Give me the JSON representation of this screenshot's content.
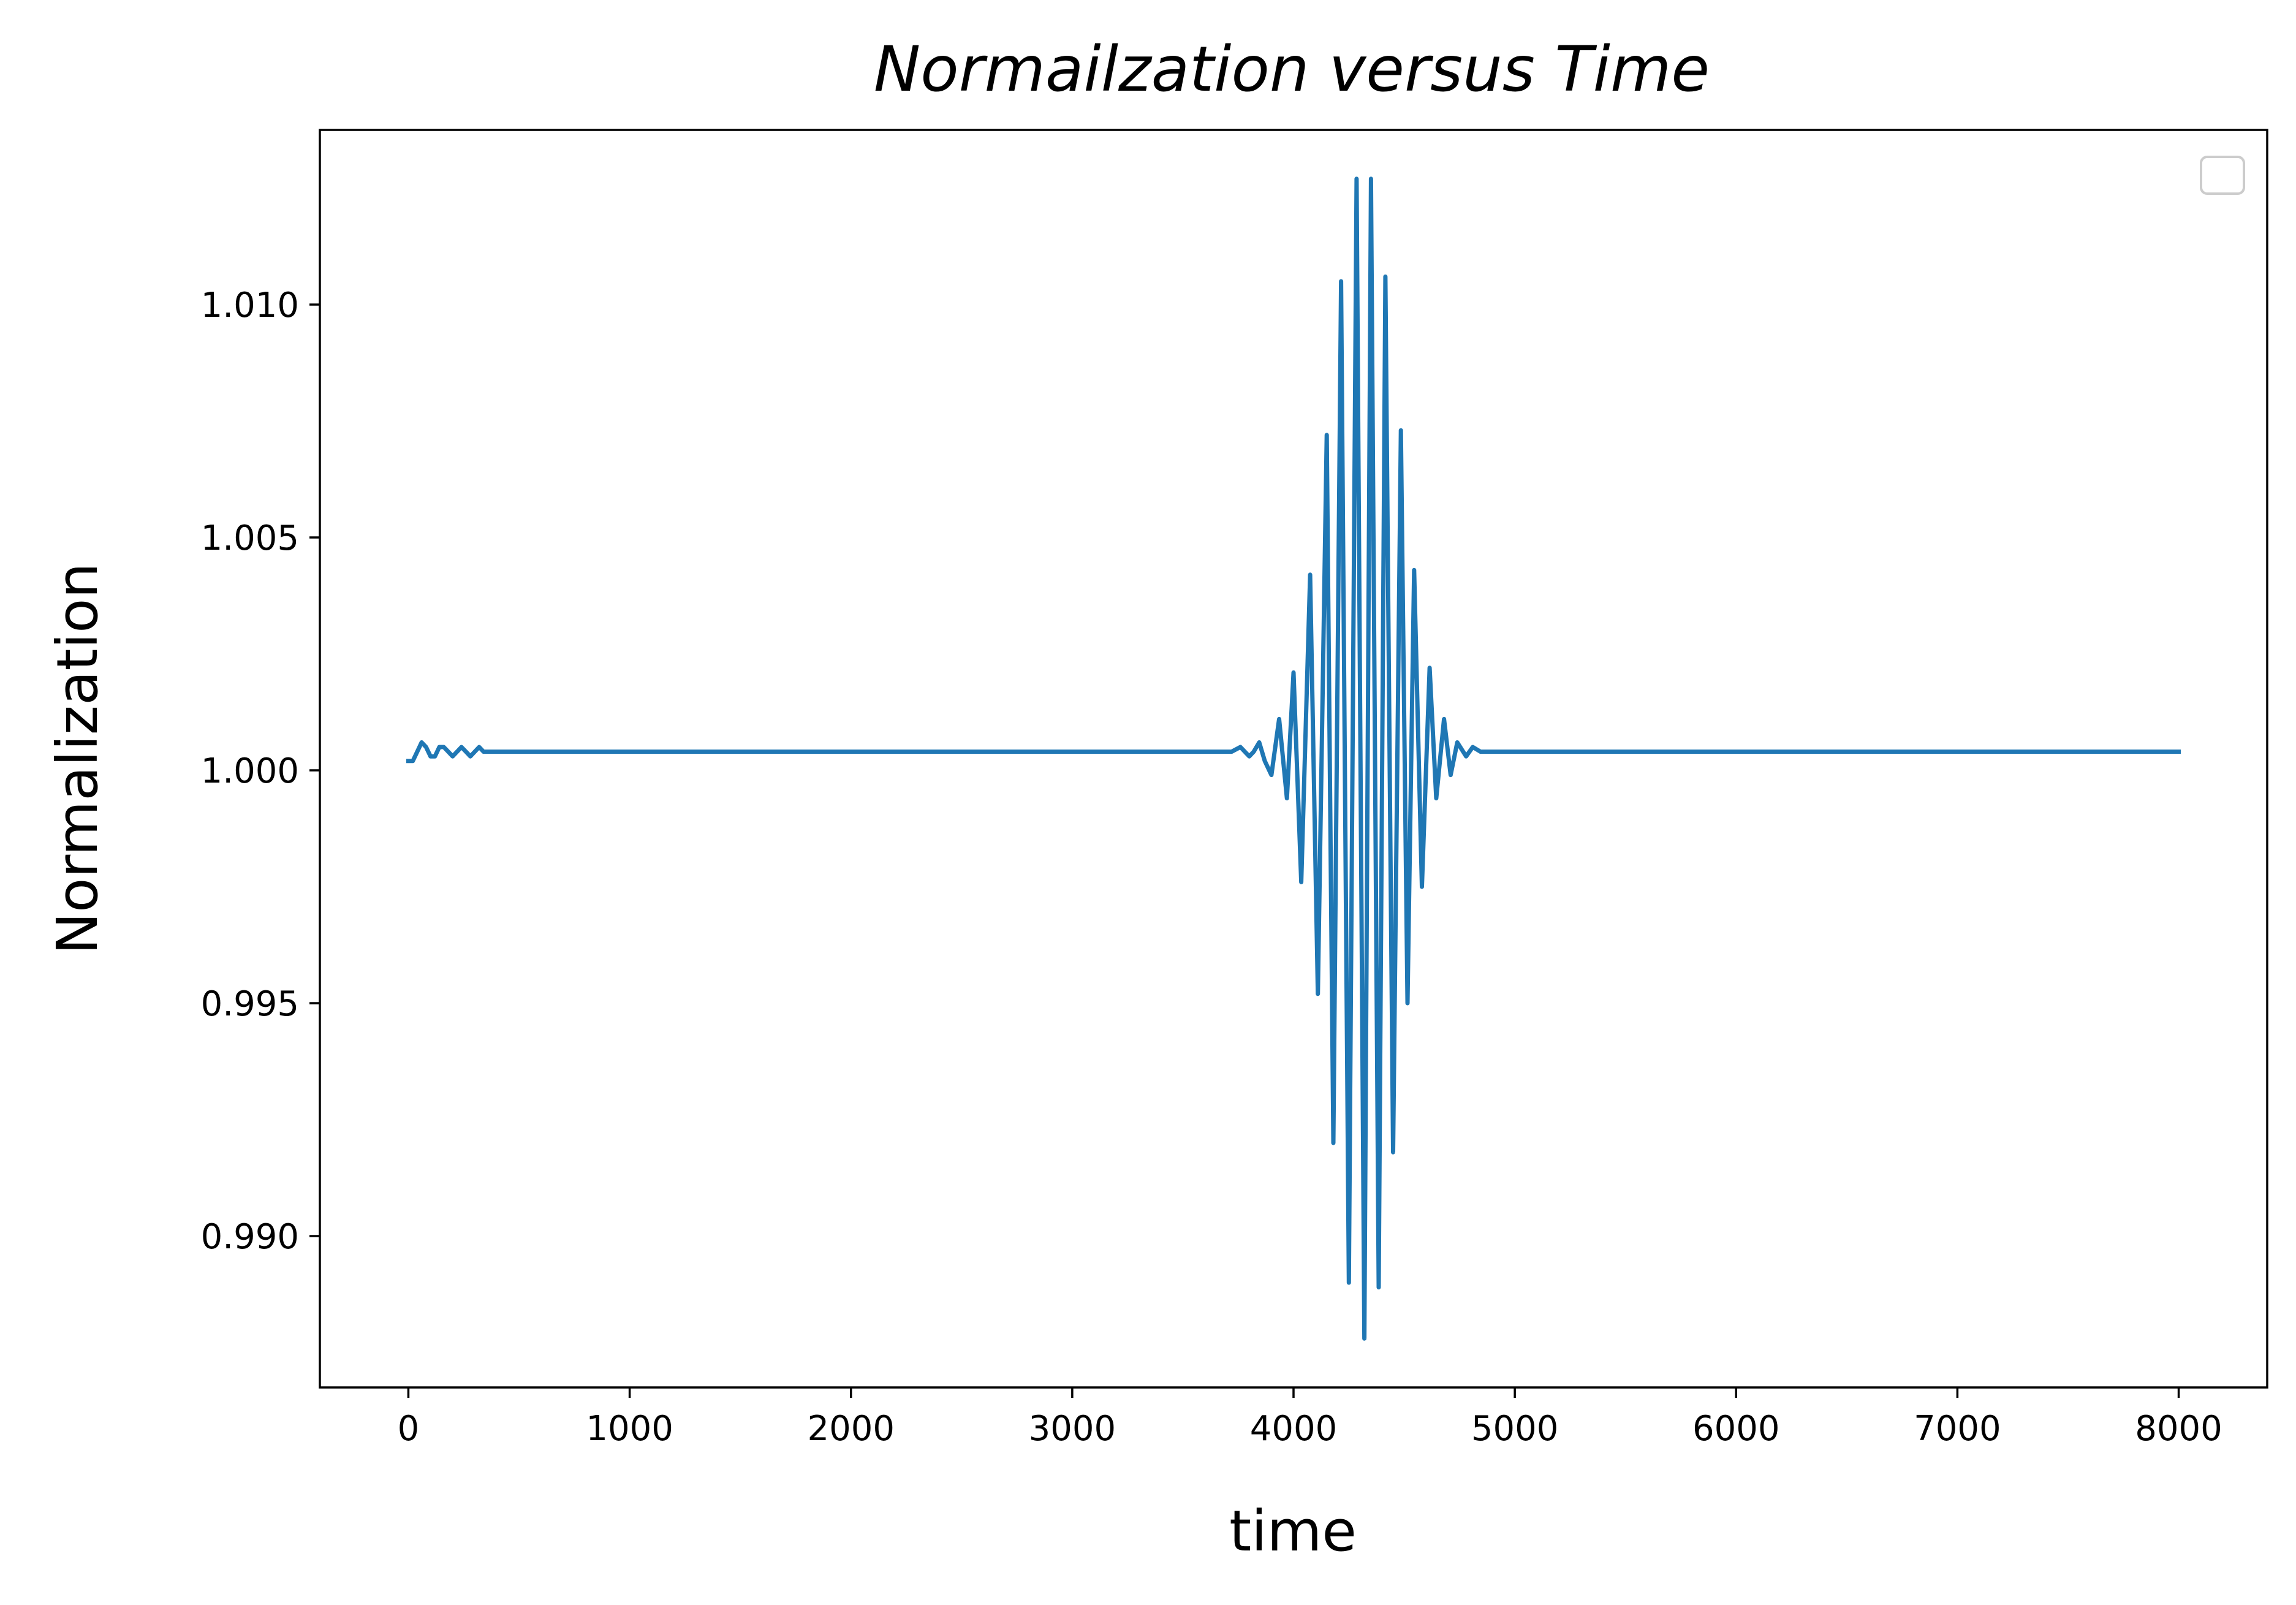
{
  "chart_data": {
    "type": "line",
    "title": "Normailzation versus Time",
    "xlabel": "time",
    "ylabel": "Normalization",
    "xlim": [
      -400,
      8400
    ],
    "ylim": [
      0.98675,
      1.01375
    ],
    "xticks": [
      0,
      1000,
      2000,
      3000,
      4000,
      5000,
      6000,
      7000,
      8000
    ],
    "xtick_labels": [
      "0",
      "1000",
      "2000",
      "3000",
      "4000",
      "5000",
      "6000",
      "7000",
      "8000"
    ],
    "yticks": [
      0.99,
      0.995,
      1.0,
      1.005,
      1.01
    ],
    "ytick_labels": [
      "0.990",
      "0.995",
      "1.000",
      "1.005",
      "1.010"
    ],
    "grid": false,
    "legend": {
      "placement": "top-right",
      "entries": []
    },
    "colors": {
      "series": "#1f77b4",
      "axes": "#000000",
      "legend_border": "#cccccc"
    },
    "series": [
      {
        "x": [
          0,
          20,
          40,
          60,
          80,
          100,
          120,
          140,
          160,
          180,
          200,
          220,
          240,
          260,
          280,
          300,
          320,
          340,
          360,
          380,
          400,
          430,
          460,
          500,
          540,
          580,
          620,
          660,
          720,
          3500,
          3560,
          3620,
          3680,
          3720,
          3760,
          3800,
          3820,
          3845,
          3870,
          3900,
          3935,
          3970,
          4000,
          4035,
          4075,
          4110,
          4150,
          4180,
          4215,
          4250,
          4285,
          4320,
          4350,
          4385,
          4415,
          4450,
          4485,
          4515,
          4545,
          4580,
          4615,
          4645,
          4680,
          4710,
          4740,
          4780,
          4810,
          4845,
          4875,
          4910,
          4945,
          4980,
          5010,
          5045,
          5080,
          5110,
          5145,
          5180,
          5215,
          5250,
          5285,
          5320,
          5355,
          5390,
          5430,
          5470,
          5510,
          5550,
          5590,
          5640,
          5690,
          5740,
          5800,
          5900,
          6000,
          8000
        ],
        "y": [
          1.0002,
          1.0002,
          1.0004,
          1.0006,
          1.0005,
          1.0003,
          1.0003,
          1.0005,
          1.0005,
          1.0004,
          1.0003,
          1.0004,
          1.0005,
          1.0004,
          1.0003,
          1.0004,
          1.0005,
          1.0004,
          1.0004,
          1.0004,
          1.0004,
          1.0004,
          1.0004,
          1.0004,
          1.0004,
          1.0004,
          1.0004,
          1.0004,
          1.0004,
          1.0004,
          1.0004,
          1.0004,
          1.0004,
          1.0004,
          1.0005,
          1.0003,
          1.0004,
          1.0006,
          1.0002,
          0.9999,
          1.0011,
          0.9994,
          1.0021,
          0.9976,
          1.0042,
          0.9952,
          1.0072,
          0.992,
          1.0105,
          0.989,
          1.0127,
          0.9878,
          1.0127,
          0.9889,
          1.0106,
          0.9918,
          1.0073,
          0.995,
          1.0043,
          0.9975,
          1.0022,
          0.9994,
          1.0011,
          0.9999,
          1.0006,
          1.0003,
          1.0005,
          1.0004,
          1.0004,
          1.0004,
          1.0004,
          1.0004,
          1.0004,
          1.0004,
          1.0004,
          1.0004,
          1.0004,
          1.0004,
          1.0004,
          1.0004,
          1.0004,
          1.0004,
          1.0004,
          1.0004,
          1.0004,
          1.0004,
          1.0004,
          1.0004,
          1.0004,
          1.0004,
          1.0004,
          1.0004,
          1.0004,
          1.0004,
          1.0004,
          1.0004
        ]
      }
    ]
  }
}
